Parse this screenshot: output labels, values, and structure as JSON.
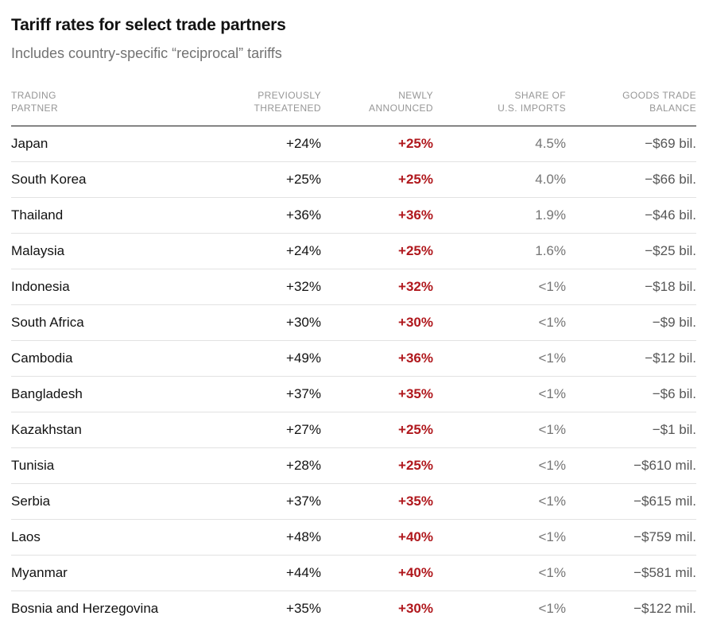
{
  "page": {
    "title": "Tariff rates for select trade partners",
    "subtitle": "Includes country-specific “reciprocal” tariffs"
  },
  "table": {
    "column_headers": [
      "TRADING\nPARTNER",
      "PREVIOUSLY\nTHREATENED",
      "NEWLY\nANNOUNCED",
      "SHARE OF\nU.S. IMPORTS",
      "GOODS TRADE\nBALANCE"
    ]
  },
  "chart_data": {
    "type": "table",
    "title": "Tariff rates for select trade partners",
    "subtitle": "Includes country-specific “reciprocal” tariffs",
    "columns": [
      "Trading partner",
      "Previously threatened",
      "Newly announced",
      "Share of U.S. imports",
      "Goods trade balance"
    ],
    "rows": [
      [
        "Japan",
        "+24%",
        "+25%",
        "4.5%",
        "−$69 bil."
      ],
      [
        "South Korea",
        "+25%",
        "+25%",
        "4.0%",
        "−$66 bil."
      ],
      [
        "Thailand",
        "+36%",
        "+36%",
        "1.9%",
        "−$46 bil."
      ],
      [
        "Malaysia",
        "+24%",
        "+25%",
        "1.6%",
        "−$25 bil."
      ],
      [
        "Indonesia",
        "+32%",
        "+32%",
        "<1%",
        "−$18 bil."
      ],
      [
        "South Africa",
        "+30%",
        "+30%",
        "<1%",
        "−$9 bil."
      ],
      [
        "Cambodia",
        "+49%",
        "+36%",
        "<1%",
        "−$12 bil."
      ],
      [
        "Bangladesh",
        "+37%",
        "+35%",
        "<1%",
        "−$6 bil."
      ],
      [
        "Kazakhstan",
        "+27%",
        "+25%",
        "<1%",
        "−$1 bil."
      ],
      [
        "Tunisia",
        "+28%",
        "+25%",
        "<1%",
        "−$610 mil."
      ],
      [
        "Serbia",
        "+37%",
        "+35%",
        "<1%",
        "−$615 mil."
      ],
      [
        "Laos",
        "+48%",
        "+40%",
        "<1%",
        "−$759 mil."
      ],
      [
        "Myanmar",
        "+44%",
        "+40%",
        "<1%",
        "−$581 mil."
      ],
      [
        "Bosnia and Herzegovina",
        "+35%",
        "+30%",
        "<1%",
        "−$122 mil."
      ]
    ]
  },
  "colors": {
    "newly_announced_red": "#b0181d",
    "text_black": "#121212",
    "subtitle_gray": "#727272",
    "column_header_gray": "#969696",
    "share_gray": "#757575",
    "balance_gray": "#565656",
    "header_rule": "#1a1a1a",
    "row_divider": "#e2e2e2",
    "background": "#ffffff"
  }
}
